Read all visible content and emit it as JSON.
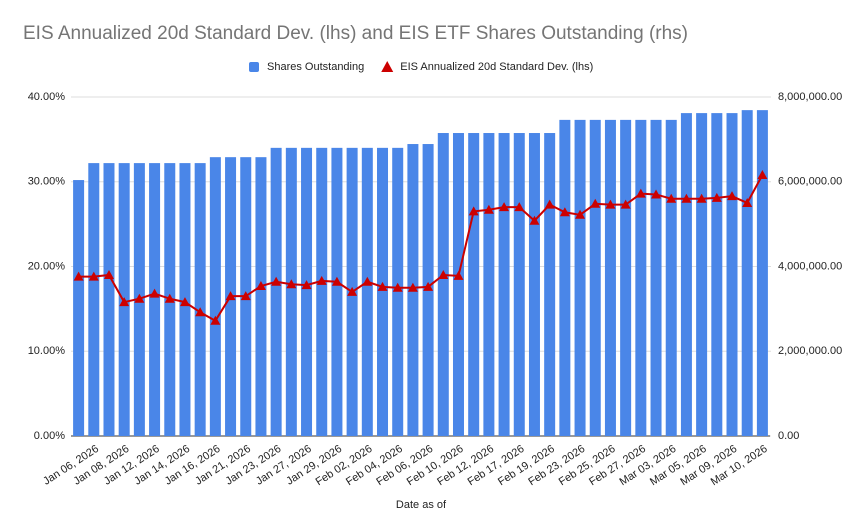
{
  "chart_data": {
    "type": "bar",
    "title": "EIS Annualized 20d Standard Dev. (lhs) and EIS ETF Shares Outstanding (rhs)",
    "x_label": "Date as of",
    "categories": [
      null,
      "Jan 06, 2026",
      null,
      "Jan 08, 2026",
      null,
      "Jan 12, 2026",
      null,
      "Jan 14, 2026",
      null,
      "Jan 16, 2026",
      null,
      "Jan 21, 2026",
      null,
      "Jan 23, 2026",
      null,
      "Jan 27, 2026",
      null,
      "Jan 29, 2026",
      null,
      "Feb 02, 2026",
      null,
      "Feb 04, 2026",
      null,
      "Feb 06, 2026",
      null,
      "Feb 10, 2026",
      null,
      "Feb 12, 2026",
      null,
      "Feb 17, 2026",
      null,
      "Feb 19, 2026",
      null,
      "Feb 23, 2026",
      null,
      "Feb 25, 2026",
      null,
      "Feb 27, 2026",
      null,
      "Mar 03, 2026",
      null,
      "Mar 05, 2026",
      null,
      "Mar 09, 2026",
      null,
      "Mar 10, 2026"
    ],
    "series": [
      {
        "name": "Shares Outstanding",
        "type": "bar",
        "axis": "y2",
        "color": "#4a86e8",
        "values": [
          6040000,
          6440000,
          6440000,
          6440000,
          6440000,
          6440000,
          6440000,
          6440000,
          6440000,
          6580000,
          6580000,
          6580000,
          6580000,
          6800000,
          6800000,
          6800000,
          6800000,
          6800000,
          6800000,
          6800000,
          6800000,
          6800000,
          6890000,
          6890000,
          7150000,
          7150000,
          7150000,
          7150000,
          7150000,
          7150000,
          7150000,
          7150000,
          7460000,
          7460000,
          7460000,
          7460000,
          7460000,
          7460000,
          7460000,
          7460000,
          7620000,
          7620000,
          7620000,
          7620000,
          7690000,
          7690000
        ]
      },
      {
        "name": "EIS Annualized 20d Standard Dev. (lhs)",
        "type": "line",
        "axis": "y",
        "color": "#cc0000",
        "values": [
          18.8,
          18.8,
          19.0,
          15.8,
          16.2,
          16.8,
          16.2,
          15.8,
          14.6,
          13.6,
          16.5,
          16.5,
          17.7,
          18.2,
          17.9,
          17.8,
          18.3,
          18.2,
          17.0,
          18.2,
          17.6,
          17.5,
          17.5,
          17.6,
          19.0,
          18.9,
          26.5,
          26.7,
          27.0,
          27.0,
          25.4,
          27.3,
          26.4,
          26.1,
          27.4,
          27.3,
          27.3,
          28.6,
          28.5,
          28.0,
          28.0,
          28.0,
          28.1,
          28.3,
          27.5,
          30.8
        ]
      }
    ],
    "ylim": [
      0,
      40
    ],
    "yticks": [
      {
        "value": 0,
        "label": "0.00%"
      },
      {
        "value": 10,
        "label": "10.00%"
      },
      {
        "value": 20,
        "label": "20.00%"
      },
      {
        "value": 30,
        "label": "30.00%"
      },
      {
        "value": 40,
        "label": "40.00%"
      }
    ],
    "y2lim": [
      0,
      8000000
    ],
    "y2ticks": [
      {
        "value": 0,
        "label": "0.00"
      },
      {
        "value": 2000000,
        "label": "2,000,000.00"
      },
      {
        "value": 4000000,
        "label": "4,000,000.00"
      },
      {
        "value": 6000000,
        "label": "6,000,000.00"
      },
      {
        "value": 8000000,
        "label": "8,000,000.00"
      }
    ],
    "grid": true,
    "legend": "top"
  }
}
